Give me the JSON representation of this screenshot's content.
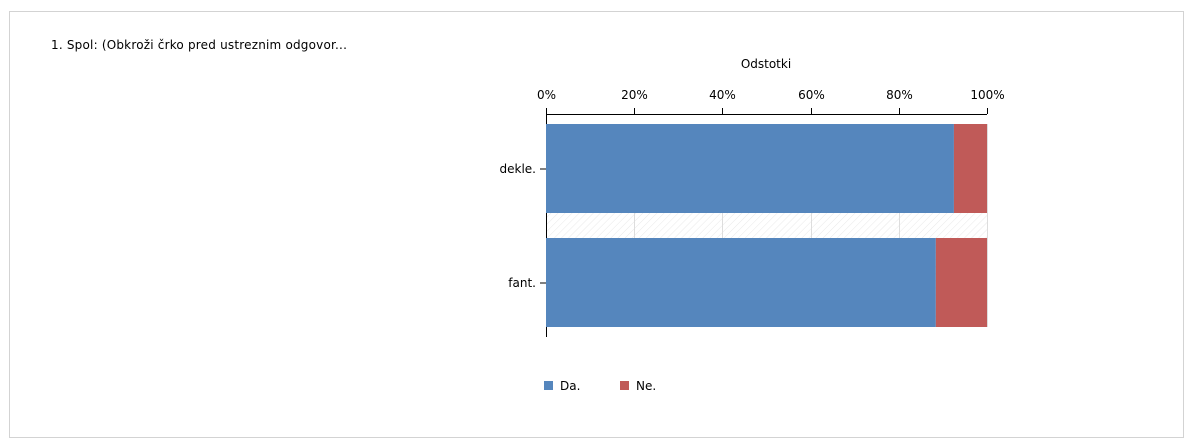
{
  "question": {
    "title": "1. Spol: (Obkroži črko pred ustreznim odgovor..."
  },
  "chart_data": {
    "type": "bar",
    "orientation": "horizontal",
    "stacked": true,
    "title": "",
    "xlabel": "Odstotki",
    "xlabel_position": "top",
    "ylabel": "",
    "xlim": [
      0,
      100
    ],
    "x_ticks": [
      "0%",
      "20%",
      "40%",
      "60%",
      "80%",
      "100%"
    ],
    "x_tick_values": [
      0,
      20,
      40,
      60,
      80,
      100
    ],
    "categories": [
      "dekle.",
      "fant."
    ],
    "series": [
      {
        "name": "Da.",
        "values": [
          92.5,
          88.4
        ],
        "color": "#5586bd"
      },
      {
        "name": "Ne.",
        "values": [
          7.5,
          11.6
        ],
        "color": "#c05a58"
      }
    ],
    "grid": true,
    "legend": "bottom"
  }
}
